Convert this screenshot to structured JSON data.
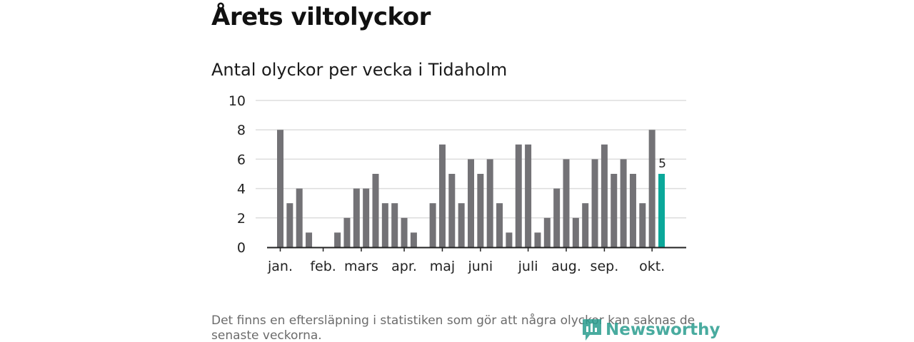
{
  "header": {
    "title": "Årets viltolyckor",
    "subtitle": "Antal olyckor per vecka i Tidaholm"
  },
  "footer": {
    "note": "Det finns en eftersläpning i statistiken som gör att några olyckor kan saknas de senaste veckorna.",
    "brand": "Newsworthy"
  },
  "colors": {
    "bar": "#737276",
    "highlight": "#0ba89a",
    "grid": "#dddddd",
    "axis": "#222222",
    "brand": "#2a9d8f"
  },
  "chart_data": {
    "type": "bar",
    "title": "Antal olyckor per vecka i Tidaholm",
    "xlabel": "",
    "ylabel": "",
    "ylim": [
      0,
      10
    ],
    "yticks": [
      0,
      2,
      4,
      6,
      8,
      10
    ],
    "grid": true,
    "weeks": [
      1,
      2,
      3,
      4,
      5,
      6,
      7,
      8,
      9,
      10,
      11,
      12,
      13,
      14,
      15,
      16,
      17,
      18,
      19,
      20,
      21,
      22,
      23,
      24,
      25,
      26,
      27,
      28,
      29,
      30,
      31,
      32,
      33,
      34,
      35,
      36,
      37,
      38,
      39,
      40,
      41
    ],
    "values": [
      8,
      3,
      4,
      1,
      0,
      0,
      1,
      2,
      4,
      4,
      5,
      3,
      3,
      2,
      1,
      0,
      3,
      7,
      5,
      3,
      6,
      5,
      6,
      3,
      1,
      7,
      7,
      1,
      2,
      4,
      6,
      2,
      3,
      6,
      7,
      5,
      6,
      5,
      3,
      8,
      5
    ],
    "highlight_index": 40,
    "highlight_label": "5",
    "month_ticks": [
      {
        "label": "jan.",
        "week": 1
      },
      {
        "label": "feb.",
        "week": 5.5
      },
      {
        "label": "mars",
        "week": 9.5
      },
      {
        "label": "apr.",
        "week": 14
      },
      {
        "label": "maj",
        "week": 18
      },
      {
        "label": "juni",
        "week": 22
      },
      {
        "label": "juli",
        "week": 27
      },
      {
        "label": "aug.",
        "week": 31
      },
      {
        "label": "sep.",
        "week": 35
      },
      {
        "label": "okt.",
        "week": 40
      }
    ]
  }
}
